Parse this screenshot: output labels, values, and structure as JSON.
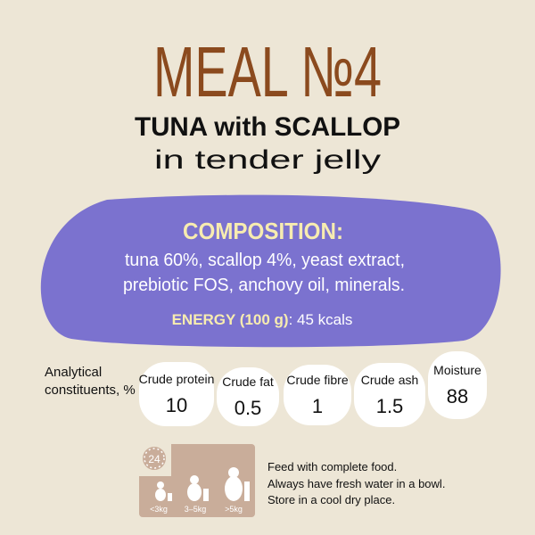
{
  "title": "MEAL №4",
  "subtitle": "TUNA with SCALLOP",
  "tagline": "in tender jelly",
  "composition": {
    "heading": "COMPOSITION:",
    "lines": [
      "tuna 60%, scallop 4%, yeast extract,",
      "prebiotic FOS, anchovy oil, minerals."
    ],
    "energy_label": "ENERGY (100 g)",
    "energy_value": ": 45 kcals"
  },
  "analytical": {
    "label_lines": [
      "Analytical",
      "constituents, %"
    ],
    "items": [
      {
        "name": "Crude protein",
        "value": 10
      },
      {
        "name": "Crude fat",
        "value": 0.5
      },
      {
        "name": "Crude fibre",
        "value": 1
      },
      {
        "name": "Crude ash",
        "value": 1.5
      },
      {
        "name": "Moisture",
        "value": 88
      }
    ]
  },
  "feeding": {
    "hours": "24",
    "weights": [
      "<3kg",
      "3–5kg",
      ">5kg"
    ],
    "instructions": [
      "Feed with complete food.",
      "Always have fresh water in a bowl.",
      "Store in a cool dry place."
    ]
  }
}
